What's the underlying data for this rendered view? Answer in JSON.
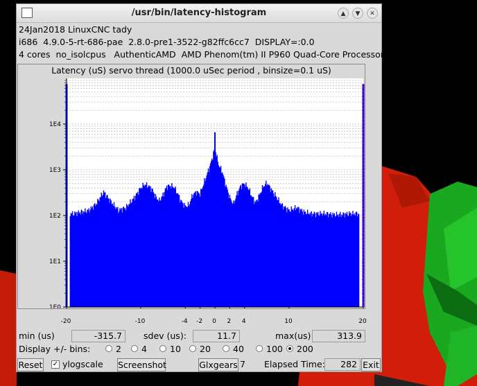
{
  "window": {
    "title": "/usr/bin/latency-histogram"
  },
  "info": {
    "line1": "24Jan2018 LinuxCNC tady",
    "line2": "i686  4.9.0-5-rt-686-pae  2.8.0-pre1-3522-g82ffc6cc7  DISPLAY=:0.0",
    "line3": "4 cores  no_isolcpus   AuthenticAMD  AMD Phenom(tm) II P960 Quad-Core Processor"
  },
  "plot": {
    "title": "Latency (uS) servo thread (1000.0 uSec period , binsize=0.1 uS)"
  },
  "stats": {
    "min_label": "min (us)",
    "min_value": "-315.7",
    "sdev_label": "sdev (us):",
    "sdev_value": "11.7",
    "max_label": "max(us)",
    "max_value": "313.9"
  },
  "bins": {
    "label": "Display +/- bins:",
    "options": [
      "2",
      "4",
      "10",
      "20",
      "40",
      "100",
      "200"
    ],
    "selected": "200"
  },
  "controls": {
    "reset": "Reset",
    "ylogscale": "ylogscale",
    "ylogscale_checked": true,
    "screenshot": "Screenshot",
    "glxgears": "Glxgears",
    "glxgears_count": "7",
    "elapsed_label": "Elapsed Time:",
    "elapsed_value": "282",
    "exit": "Exit"
  },
  "colors": {
    "bars": "#0000ff",
    "background": "#ffffff",
    "edge_lines": "#ff0000",
    "grid": "#9e9e9e"
  },
  "chart_data": {
    "type": "bar",
    "title": "Latency (uS) servo thread (1000.0 uSec period , binsize=0.1 uS)",
    "x_ticks": [
      -20,
      -10,
      -4,
      -2,
      0,
      2,
      4,
      10,
      20
    ],
    "xlim": [
      -20,
      20
    ],
    "y_ticks": [
      "1E0",
      "1E1",
      "1E2",
      "1E3",
      "1E4"
    ],
    "y_scale": "log",
    "ylim_exp": [
      0,
      5
    ],
    "grid": true,
    "series": [
      {
        "x": [
          -20,
          -19.5,
          -19,
          -18,
          -17,
          -16,
          -15,
          -14,
          -13,
          -12,
          -11,
          -10,
          -9.5,
          -9,
          -8.5,
          -8,
          -7.5,
          -7,
          -6.5,
          -6,
          -5.5,
          -5,
          -4.5,
          -4,
          -3.5,
          -3,
          -2.5,
          -2,
          -1.5,
          -1,
          -0.5,
          0,
          0.5,
          1,
          1.5,
          2,
          2.5,
          3,
          3.5,
          4,
          4.5,
          5,
          5.5,
          6,
          6.5,
          7,
          8,
          9,
          10,
          11,
          12,
          13,
          14,
          15,
          16,
          17,
          18,
          19,
          19.5,
          20
        ],
        "y": [
          75000,
          110,
          110,
          120,
          130,
          180,
          330,
          200,
          130,
          150,
          230,
          400,
          480,
          450,
          380,
          260,
          210,
          280,
          430,
          450,
          420,
          300,
          200,
          160,
          170,
          280,
          330,
          300,
          500,
          850,
          1500,
          3000,
          1300,
          900,
          450,
          250,
          180,
          300,
          450,
          500,
          400,
          260,
          190,
          280,
          430,
          520,
          300,
          170,
          130,
          150,
          120,
          110,
          110,
          110,
          105,
          105,
          110,
          110,
          110,
          75000
        ]
      }
    ]
  }
}
